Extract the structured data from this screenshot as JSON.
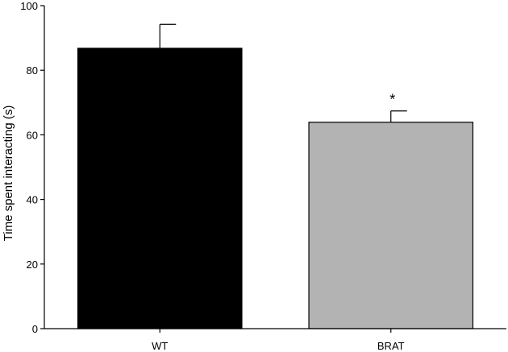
{
  "chart_data": {
    "type": "bar",
    "title": "",
    "xlabel": "",
    "ylabel": "Time spent interacting (s)",
    "ylim": [
      0,
      100
    ],
    "yticks": [
      0,
      20,
      40,
      60,
      80,
      100
    ],
    "categories": [
      "WT",
      "BRAT"
    ],
    "values": [
      86.8,
      63.9
    ],
    "errors": [
      7.4,
      3.5
    ],
    "colors": [
      "#000000",
      "#b3b3b3"
    ],
    "annotations": [
      "",
      "*"
    ],
    "grid": false,
    "legend": "none"
  }
}
